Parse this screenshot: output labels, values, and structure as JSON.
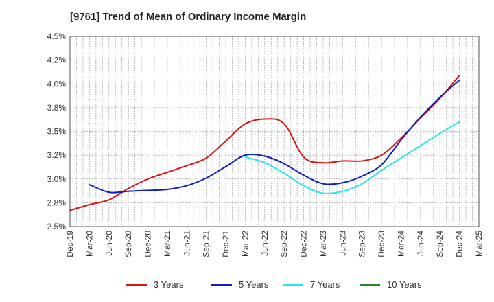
{
  "chart_data": {
    "type": "line",
    "title": "[9761]  Trend of Mean of Ordinary Income Margin",
    "xlabel": "",
    "ylabel": "",
    "ylim": [
      2.5,
      4.5
    ],
    "y_ticks": [
      "2.5%",
      "2.8%",
      "3.0%",
      "3.2%",
      "3.5%",
      "3.8%",
      "4.0%",
      "4.2%",
      "4.5%"
    ],
    "x_ticks": [
      "Dec-19",
      "Mar-20",
      "Jun-20",
      "Sep-20",
      "Dec-20",
      "Mar-21",
      "Jun-21",
      "Sep-21",
      "Dec-21",
      "Mar-22",
      "Jun-22",
      "Sep-22",
      "Dec-22",
      "Mar-23",
      "Jun-23",
      "Sep-23",
      "Dec-23",
      "Mar-24",
      "Jun-24",
      "Sep-24",
      "Dec-24",
      "Mar-25"
    ],
    "grid": true,
    "legend_position": "bottom",
    "series": [
      {
        "name": "3 Years",
        "color": "#dd1111",
        "x": [
          "Dec-19",
          "Mar-20",
          "Jun-20",
          "Sep-20",
          "Dec-20",
          "Mar-21",
          "Jun-21",
          "Sep-21",
          "Dec-21",
          "Mar-22",
          "Jun-22",
          "Sep-22",
          "Dec-22",
          "Mar-23",
          "Jun-23",
          "Sep-23",
          "Dec-23",
          "Mar-24",
          "Jun-24",
          "Sep-24",
          "Dec-24"
        ],
        "values": [
          2.67,
          2.73,
          2.78,
          2.9,
          3.0,
          3.07,
          3.14,
          3.22,
          3.4,
          3.58,
          3.63,
          3.58,
          3.23,
          3.17,
          3.19,
          3.19,
          3.25,
          3.43,
          3.64,
          3.85,
          4.09
        ]
      },
      {
        "name": "5 Years",
        "color": "#0a1fbf",
        "x": [
          "Mar-20",
          "Jun-20",
          "Sep-20",
          "Dec-20",
          "Mar-21",
          "Jun-21",
          "Sep-21",
          "Dec-21",
          "Mar-22",
          "Jun-22",
          "Sep-22",
          "Dec-22",
          "Mar-23",
          "Jun-23",
          "Sep-23",
          "Dec-23",
          "Mar-24",
          "Jun-24",
          "Sep-24",
          "Dec-24"
        ],
        "values": [
          2.94,
          2.86,
          2.87,
          2.88,
          2.89,
          2.93,
          3.01,
          3.13,
          3.25,
          3.24,
          3.16,
          3.04,
          2.95,
          2.96,
          3.03,
          3.15,
          3.41,
          3.65,
          3.86,
          4.04
        ]
      },
      {
        "name": "7 Years",
        "color": "#22e8e8",
        "x": [
          "Mar-22",
          "Jun-22",
          "Sep-22",
          "Dec-22",
          "Mar-23",
          "Jun-23",
          "Sep-23",
          "Dec-23",
          "Mar-24",
          "Jun-24",
          "Sep-24",
          "Dec-24"
        ],
        "values": [
          3.23,
          3.17,
          3.06,
          2.93,
          2.85,
          2.87,
          2.95,
          3.09,
          3.22,
          3.35,
          3.48,
          3.6
        ]
      },
      {
        "name": "10 Years",
        "color": "#228b22",
        "x": [],
        "values": []
      }
    ]
  }
}
